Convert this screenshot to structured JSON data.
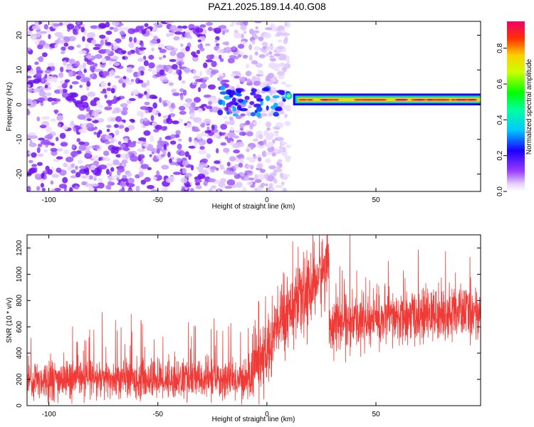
{
  "title": "PAZ1.2025.189.14.40.G08",
  "chart_data": [
    {
      "type": "heatmap",
      "xlabel": "Height of straight line (km)",
      "ylabel": "Frequency (Hz)",
      "xlim": [
        -110,
        98
      ],
      "ylim": [
        -25,
        24
      ],
      "xticks": [
        -100,
        -50,
        0,
        50
      ],
      "yticks": [
        -20,
        -10,
        0,
        10,
        20
      ],
      "colorbar": {
        "label": "Normalized spectral amplitude",
        "range": [
          0,
          0.95
        ],
        "ticks": [
          0.0,
          0.2,
          0.4,
          0.6,
          0.8
        ],
        "tick_labels": [
          "0.0",
          "0.2",
          "0.4",
          "0.6",
          "0.8"
        ]
      },
      "features": {
        "noise_region_x": [
          -110,
          10
        ],
        "signal_line_x": [
          12,
          98
        ],
        "signal_line_frequency": [
          1.2,
          1.6
        ],
        "signal_line_amplitude": 0.9
      }
    },
    {
      "type": "line",
      "xlabel": "Height of straight line (km)",
      "ylabel": "SNR (10 * v/v)",
      "xlim": [
        -110,
        98
      ],
      "ylim": [
        0,
        1300
      ],
      "xticks": [
        -100,
        -50,
        0,
        50
      ],
      "yticks": [
        0,
        200,
        400,
        600,
        800,
        1000,
        1200
      ],
      "series": [
        {
          "color": "#f03a36",
          "segments": [
            {
              "x": [
                -110,
                -6
              ],
              "mean": 200,
              "spread": 75
            },
            {
              "x": [
                -6,
                0
              ],
              "mean": 330,
              "spread": 100
            },
            {
              "x": [
                0,
                12
              ],
              "mean": "rising 450 to 800",
              "spread": 150
            },
            {
              "x": [
                12,
                28
              ],
              "mean": "rising 700 to 1100",
              "spread": 150
            },
            {
              "x": [
                29,
                98
              ],
              "mean": "rising 620 to 720",
              "spread": 100
            }
          ]
        }
      ]
    }
  ]
}
